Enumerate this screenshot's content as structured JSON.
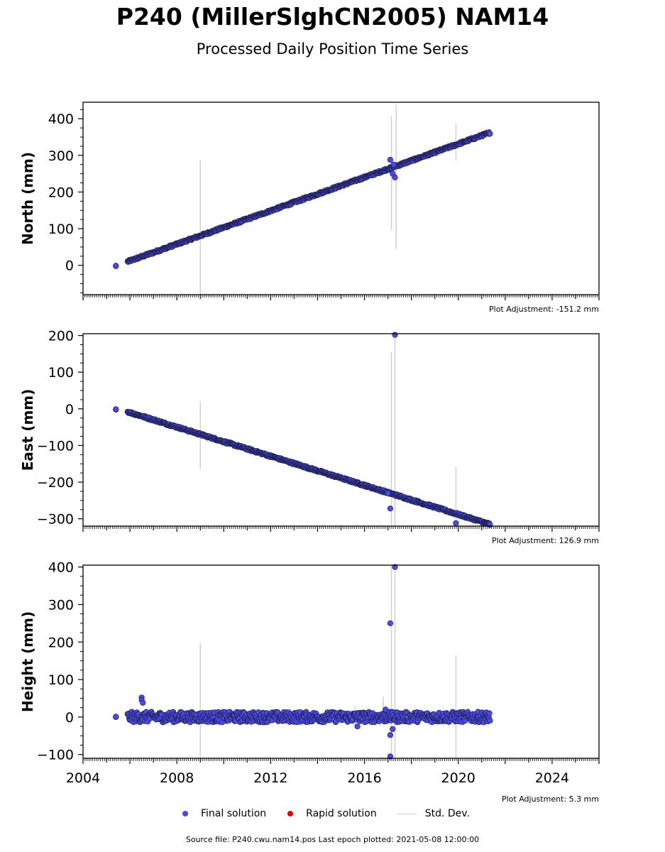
{
  "title": "P240 (MillerSlghCN2005) NAM14",
  "subtitle": "Processed Daily Position Time Series",
  "legend": {
    "final_label": "Final solution",
    "rapid_label": "Rapid solution",
    "std_label": "Std. Dev.",
    "final_color": "#4a4ae6",
    "rapid_color": "#e00000",
    "std_color": "#d0d0d0"
  },
  "source_text": "Source file: P240.cwu.nam14.pos  Last epoch plotted: 2021-05-08 12:00:00",
  "chart_data": [
    {
      "type": "scatter",
      "ylabel": "North (mm)",
      "adjustment": "Plot Adjustment: -151.2 mm",
      "xlim": [
        2004,
        2026
      ],
      "ylim": [
        -80,
        445
      ],
      "yticks": [
        0,
        100,
        200,
        300,
        400
      ],
      "trend": {
        "start": [
          2005.4,
          -2
        ],
        "first": [
          2005.9,
          10
        ],
        "end": [
          2021.35,
          362
        ],
        "noise": 3
      },
      "outliers": [
        [
          2017.1,
          288
        ],
        [
          2017.2,
          250
        ],
        [
          2017.3,
          240
        ],
        [
          2017.25,
          275
        ]
      ],
      "stddev": [
        [
          2009.0,
          -80,
          288
        ],
        [
          2017.15,
          95,
          407
        ],
        [
          2017.35,
          45,
          437
        ],
        [
          2019.9,
          286,
          386
        ]
      ]
    },
    {
      "type": "scatter",
      "ylabel": "East (mm)",
      "adjustment": "Plot Adjustment: 126.9 mm",
      "xlim": [
        2004,
        2026
      ],
      "ylim": [
        -320,
        205
      ],
      "yticks": [
        -300,
        -200,
        -100,
        0,
        100,
        200
      ],
      "trend": {
        "start": [
          2005.4,
          -2
        ],
        "first": [
          2005.9,
          -8
        ],
        "end": [
          2021.35,
          -315
        ],
        "noise": 3
      },
      "outliers": [
        [
          2017.1,
          -272
        ],
        [
          2017.3,
          202
        ],
        [
          2019.9,
          -312
        ],
        [
          2017.0,
          -230
        ]
      ],
      "stddev": [
        [
          2009.0,
          -165,
          20
        ],
        [
          2017.15,
          -320,
          155
        ],
        [
          2017.3,
          -320,
          205
        ],
        [
          2019.9,
          -320,
          -158
        ]
      ]
    },
    {
      "type": "scatter",
      "ylabel": "Height (mm)",
      "adjustment": "Plot Adjustment: 5.3 mm",
      "xlim": [
        2004,
        2026
      ],
      "ylim": [
        -110,
        405
      ],
      "yticks": [
        -100,
        0,
        100,
        200,
        300,
        400
      ],
      "xticks": [
        2004,
        2008,
        2012,
        2016,
        2020,
        2024
      ],
      "trend": {
        "start": [
          2005.4,
          0
        ],
        "first": [
          2005.9,
          0
        ],
        "end": [
          2021.35,
          0
        ],
        "noise": 14
      },
      "outliers": [
        [
          2006.5,
          52
        ],
        [
          2006.5,
          45
        ],
        [
          2006.55,
          38
        ],
        [
          2017.1,
          250
        ],
        [
          2017.3,
          400
        ],
        [
          2016.9,
          20
        ],
        [
          2017.1,
          -48
        ],
        [
          2017.2,
          -32
        ],
        [
          2017.1,
          -105
        ],
        [
          2015.7,
          -25
        ]
      ],
      "stddev": [
        [
          2009.0,
          -110,
          198
        ],
        [
          2017.15,
          -110,
          405
        ],
        [
          2017.3,
          -110,
          405
        ],
        [
          2019.9,
          -110,
          165
        ],
        [
          2015.6,
          -30,
          30
        ],
        [
          2016.8,
          -20,
          55
        ]
      ]
    }
  ]
}
